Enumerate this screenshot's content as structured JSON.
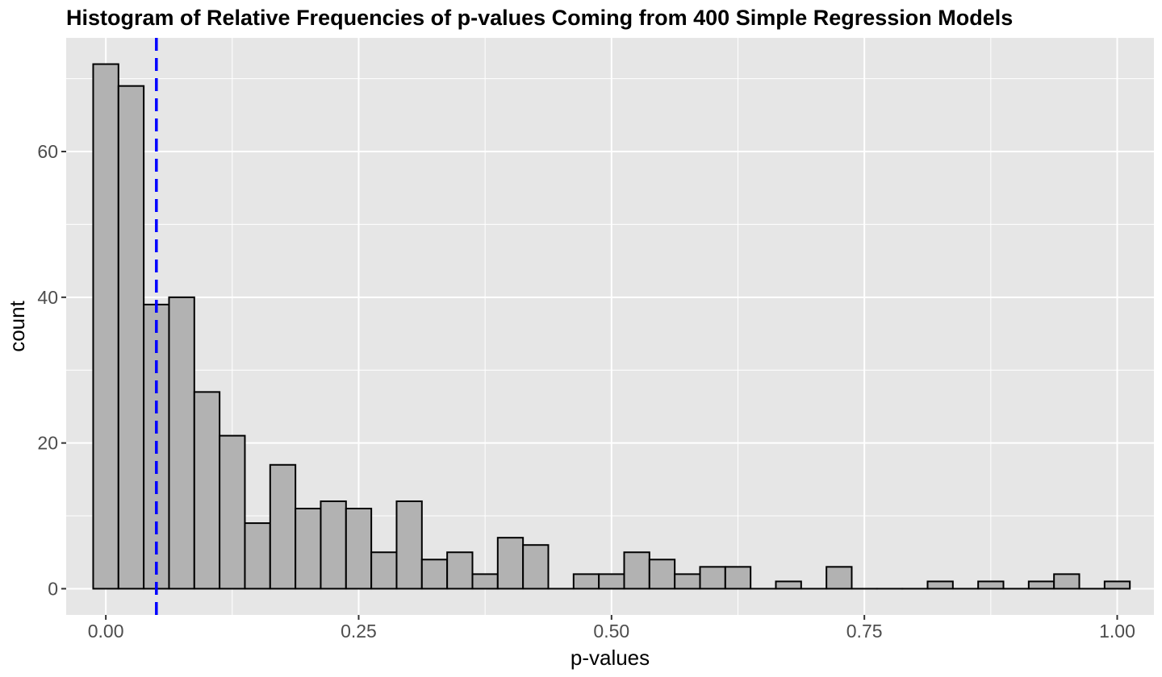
{
  "chart_data": {
    "type": "bar",
    "subtype": "histogram",
    "title": "Histogram of Relative Frequencies of p-values Coming from 400 Simple Regression Models",
    "xlabel": "p-values",
    "ylabel": "count",
    "xlim": [
      -0.0392,
      1.0363
    ],
    "ylim": [
      -3.6,
      75.6
    ],
    "grid": true,
    "bin_width": 0.025,
    "bins_start": -0.0125,
    "values": [
      72,
      69,
      39,
      40,
      27,
      21,
      9,
      17,
      11,
      12,
      11,
      5,
      12,
      4,
      5,
      2,
      7,
      6,
      0,
      2,
      2,
      5,
      4,
      2,
      3,
      3,
      0,
      1,
      0,
      3,
      0,
      0,
      0,
      1,
      0,
      1,
      0,
      1,
      2,
      0,
      1
    ],
    "bar_fill": "#b2b2b2",
    "bar_outline": "#000000",
    "x_ticks": [
      0,
      0.25,
      0.5,
      0.75,
      1
    ],
    "x_tick_labels": [
      "0.00",
      "0.25",
      "0.50",
      "0.75",
      "1.00"
    ],
    "y_ticks": [
      0,
      20,
      40,
      60
    ],
    "y_tick_labels": [
      "0",
      "20",
      "40",
      "60"
    ],
    "reference_line": {
      "x": 0.05,
      "style": "dashed",
      "color": "#0000ff"
    },
    "panel_background": "#e6e6e6",
    "grid_color": "#ffffff"
  }
}
